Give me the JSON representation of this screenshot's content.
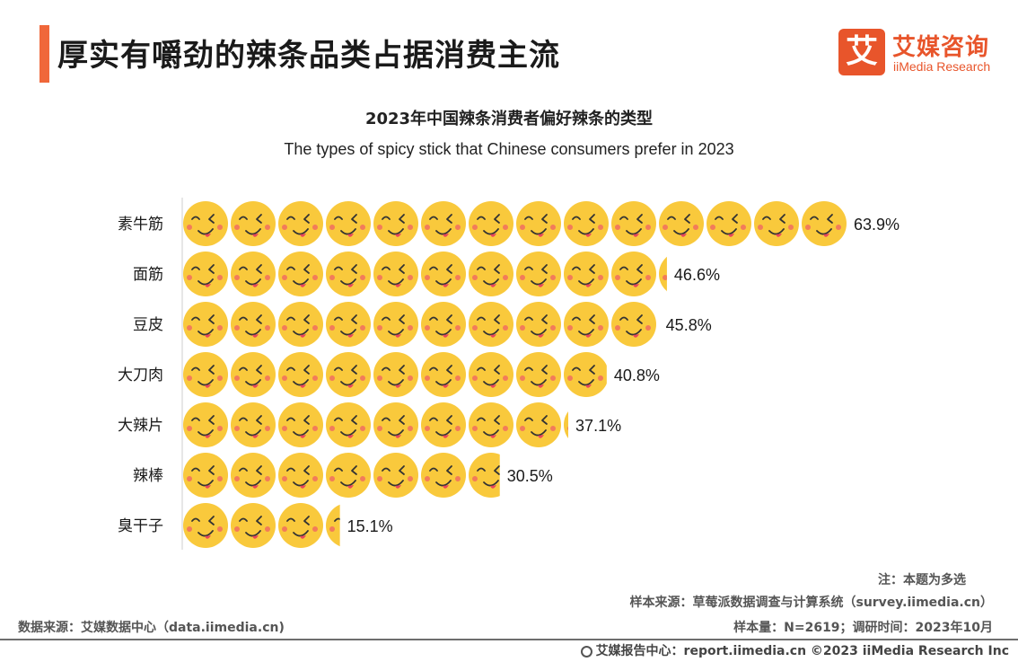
{
  "header": {
    "title": "厚实有嚼劲的辣条品类占据消费主流",
    "accent_color": "#f0673a"
  },
  "logo": {
    "mark": "艾",
    "name_cn": "艾媒咨询",
    "name_en": "iiMedia Research",
    "color": "#e8552b"
  },
  "chart_data": {
    "type": "bar",
    "title": "2023年中国辣条消费者偏好辣条的类型",
    "subtitle": "The types of spicy stick that Chinese consumers prefer in 2023",
    "categories": [
      "素牛筋",
      "面筋",
      "豆皮",
      "大刀肉",
      "大辣片",
      "辣棒",
      "臭干子"
    ],
    "values": [
      63.9,
      46.6,
      45.8,
      40.8,
      37.1,
      30.5,
      15.1
    ],
    "value_labels": [
      "63.9%",
      "46.6%",
      "45.8%",
      "40.8%",
      "37.1%",
      "30.5%",
      "15.1%"
    ],
    "unit": "%",
    "orientation": "horizontal",
    "mark_style": "emoji-face-pictogram",
    "face_color": "#f9c93c",
    "cheek_color": "#f27b5a",
    "tongue_color": "#e8475a"
  },
  "notes": {
    "note": "注：本题为多选",
    "sample_source": "样本来源：草莓派数据调查与计算系统（survey.iimedia.cn）",
    "sample_size": "样本量：N=2619；调研时间：2023年10月",
    "data_source": "数据来源：艾媒数据中心（data.iimedia.cn)"
  },
  "footer": {
    "text": "艾媒报告中心：report.iimedia.cn  ©2023  iiMedia Research  Inc"
  }
}
